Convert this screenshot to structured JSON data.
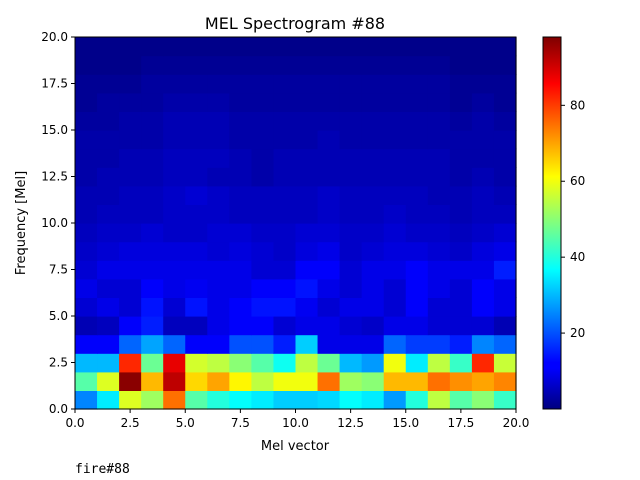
{
  "chart_data": {
    "type": "heatmap",
    "title": "MEL Spectrogram #88",
    "xlabel": "Mel vector",
    "ylabel": "Frequency [Mel]",
    "xlim": [
      0,
      20
    ],
    "ylim": [
      0,
      20
    ],
    "xticks": [
      "0.0",
      "2.5",
      "5.0",
      "7.5",
      "10.0",
      "12.5",
      "15.0",
      "17.5",
      "20.0"
    ],
    "yticks": [
      "0.0",
      "2.5",
      "5.0",
      "7.5",
      "10.0",
      "12.5",
      "15.0",
      "17.5",
      "20.0"
    ],
    "colormap": "jet",
    "colorbar": {
      "min": 0,
      "max": 98,
      "ticks": [
        20,
        40,
        60,
        80
      ]
    },
    "row_order": "bottom-to-top (row 0 = frequency 0-1)",
    "values": [
      [
        25,
        35,
        58,
        52,
        75,
        45,
        40,
        37,
        35,
        32,
        32,
        33,
        37,
        35,
        27,
        40,
        55,
        45,
        50,
        42
      ],
      [
        45,
        58,
        97,
        68,
        92,
        65,
        70,
        62,
        55,
        60,
        60,
        75,
        52,
        50,
        68,
        68,
        75,
        72,
        70,
        73
      ],
      [
        30,
        30,
        82,
        47,
        88,
        57,
        55,
        50,
        45,
        38,
        55,
        47,
        30,
        27,
        60,
        35,
        55,
        42,
        82,
        56
      ],
      [
        12,
        12,
        22,
        28,
        22,
        12,
        12,
        20,
        20,
        15,
        32,
        10,
        10,
        10,
        22,
        18,
        18,
        15,
        25,
        22
      ],
      [
        5,
        6,
        12,
        15,
        6,
        6,
        10,
        12,
        12,
        8,
        10,
        10,
        8,
        7,
        10,
        10,
        8,
        8,
        8,
        5
      ],
      [
        8,
        10,
        8,
        14,
        8,
        14,
        10,
        12,
        14,
        14,
        11,
        8,
        10,
        10,
        8,
        12,
        8,
        8,
        12,
        10
      ],
      [
        10,
        8,
        8,
        12,
        10,
        11,
        10,
        10,
        12,
        12,
        14,
        10,
        8,
        10,
        8,
        12,
        10,
        8,
        12,
        10
      ],
      [
        8,
        10,
        10,
        10,
        10,
        10,
        10,
        10,
        8,
        8,
        12,
        12,
        8,
        10,
        10,
        12,
        10,
        10,
        10,
        15
      ],
      [
        7,
        8,
        9,
        9,
        9,
        9,
        8,
        9,
        8,
        7,
        9,
        10,
        7,
        8,
        9,
        9,
        8,
        7,
        9,
        10
      ],
      [
        6,
        7,
        7,
        8,
        7,
        7,
        8,
        8,
        7,
        7,
        8,
        8,
        7,
        7,
        8,
        7,
        7,
        6,
        7,
        8
      ],
      [
        5,
        6,
        6,
        6,
        7,
        7,
        7,
        6,
        6,
        6,
        6,
        7,
        6,
        6,
        7,
        6,
        6,
        5,
        6,
        6
      ],
      [
        5,
        5,
        6,
        6,
        7,
        8,
        7,
        6,
        6,
        6,
        6,
        7,
        6,
        6,
        6,
        6,
        5,
        5,
        6,
        5
      ],
      [
        4,
        5,
        5,
        5,
        6,
        6,
        5,
        5,
        4,
        5,
        5,
        5,
        5,
        5,
        5,
        5,
        5,
        4,
        5,
        4
      ],
      [
        4,
        4,
        5,
        5,
        6,
        6,
        6,
        5,
        4,
        5,
        5,
        5,
        5,
        5,
        5,
        5,
        5,
        4,
        4,
        4
      ],
      [
        4,
        4,
        4,
        4,
        5,
        5,
        5,
        4,
        4,
        4,
        4,
        5,
        4,
        4,
        4,
        4,
        4,
        4,
        4,
        4
      ],
      [
        3,
        3,
        4,
        4,
        5,
        5,
        5,
        4,
        4,
        4,
        4,
        4,
        4,
        4,
        4,
        4,
        4,
        3,
        4,
        3
      ],
      [
        2,
        3,
        3,
        3,
        4,
        4,
        4,
        3,
        3,
        3,
        3,
        3,
        3,
        3,
        3,
        3,
        3,
        2,
        3,
        2
      ],
      [
        2,
        2,
        2,
        3,
        3,
        3,
        3,
        3,
        3,
        3,
        3,
        3,
        3,
        3,
        3,
        3,
        3,
        2,
        2,
        2
      ],
      [
        1,
        1,
        1,
        2,
        2,
        2,
        2,
        2,
        2,
        2,
        2,
        2,
        2,
        2,
        2,
        2,
        2,
        1,
        1,
        1
      ],
      [
        1,
        1,
        1,
        1,
        1,
        1,
        1,
        1,
        1,
        1,
        1,
        1,
        1,
        1,
        1,
        1,
        1,
        1,
        1,
        1
      ]
    ]
  },
  "caption": "fire#88"
}
